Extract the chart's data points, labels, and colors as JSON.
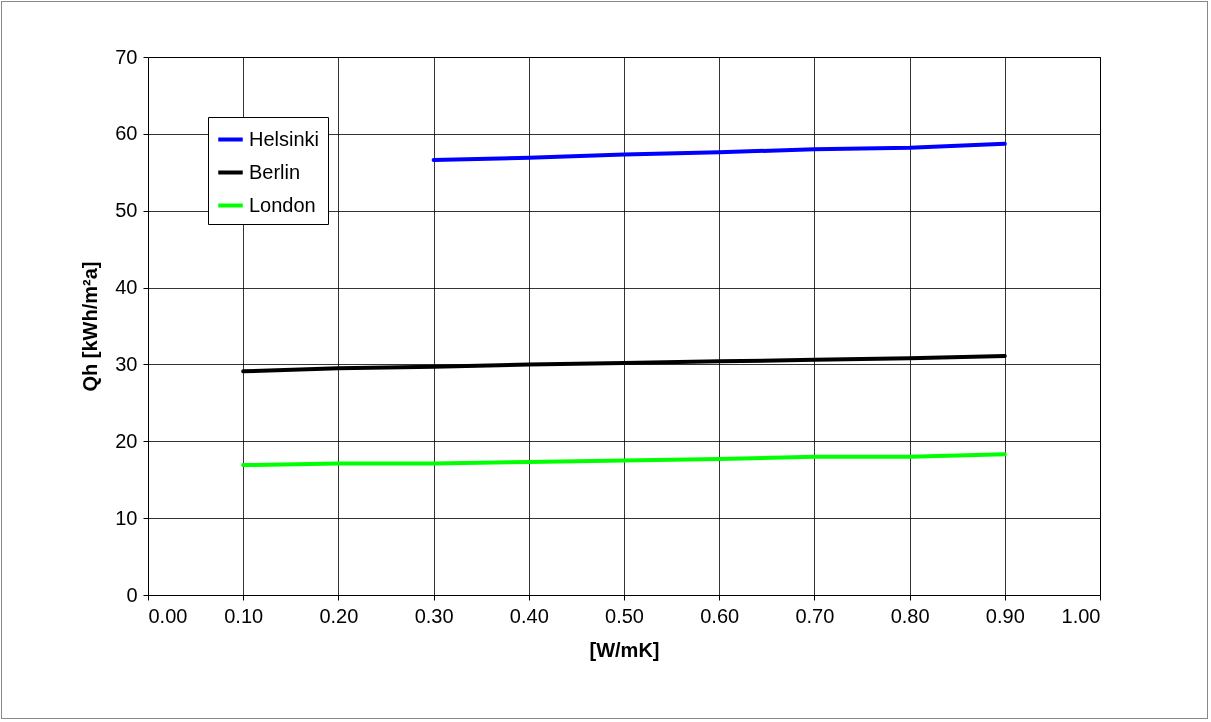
{
  "chart_data": {
    "type": "line",
    "xlabel": "[W/mK]",
    "ylabel": "Qh [kWh/m²a]",
    "x": [
      0.1,
      0.2,
      0.3,
      0.4,
      0.5,
      0.6,
      0.7,
      0.8,
      0.9
    ],
    "series": [
      {
        "name": "Helsinki",
        "color": "#0000ff",
        "values": [
          null,
          null,
          56.6,
          56.9,
          57.3,
          57.6,
          58.0,
          58.2,
          58.7
        ]
      },
      {
        "name": "Berlin",
        "color": "#000000",
        "values": [
          29.1,
          29.5,
          29.7,
          30.0,
          30.2,
          30.4,
          30.6,
          30.8,
          31.1
        ]
      },
      {
        "name": "London",
        "color": "#00ff00",
        "values": [
          16.9,
          17.1,
          17.1,
          17.3,
          17.5,
          17.7,
          18.0,
          18.0,
          18.3
        ]
      }
    ],
    "xlim": [
      0,
      1
    ],
    "xticks": [
      {
        "value": 0,
        "label": "0.00"
      },
      {
        "value": 0.1,
        "label": "0.10"
      },
      {
        "value": 0.2,
        "label": "0.20"
      },
      {
        "value": 0.3,
        "label": "0.30"
      },
      {
        "value": 0.4,
        "label": "0.40"
      },
      {
        "value": 0.5,
        "label": "0.50"
      },
      {
        "value": 0.6,
        "label": "0.60"
      },
      {
        "value": 0.7,
        "label": "0.70"
      },
      {
        "value": 0.8,
        "label": "0.80"
      },
      {
        "value": 0.9,
        "label": "0.90"
      },
      {
        "value": 1,
        "label": "1.00"
      }
    ],
    "ylim": [
      0,
      70
    ],
    "yticks": [
      0,
      10,
      20,
      30,
      40,
      50,
      60,
      70
    ],
    "grid": true,
    "legend": "top left",
    "line_style": "solid",
    "marker": "none"
  }
}
